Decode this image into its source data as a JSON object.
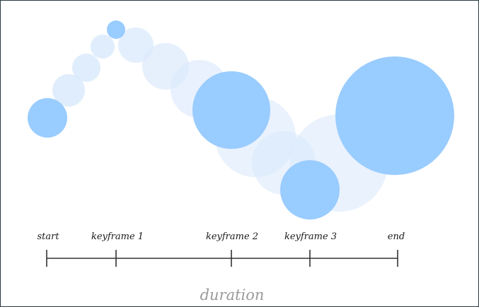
{
  "diagram": {
    "keyframe_labels": {
      "start": "start",
      "k1": "keyframe 1",
      "k2": "keyframe 2",
      "k3": "keyframe 3",
      "end": "end"
    },
    "caption": "duration"
  },
  "colors": {
    "keyframe_ball": "#99ccff",
    "ghost_ball": "#dbeafc",
    "axis": "#333333",
    "caption": "#9a9a9a",
    "border": "#2a3a40"
  }
}
